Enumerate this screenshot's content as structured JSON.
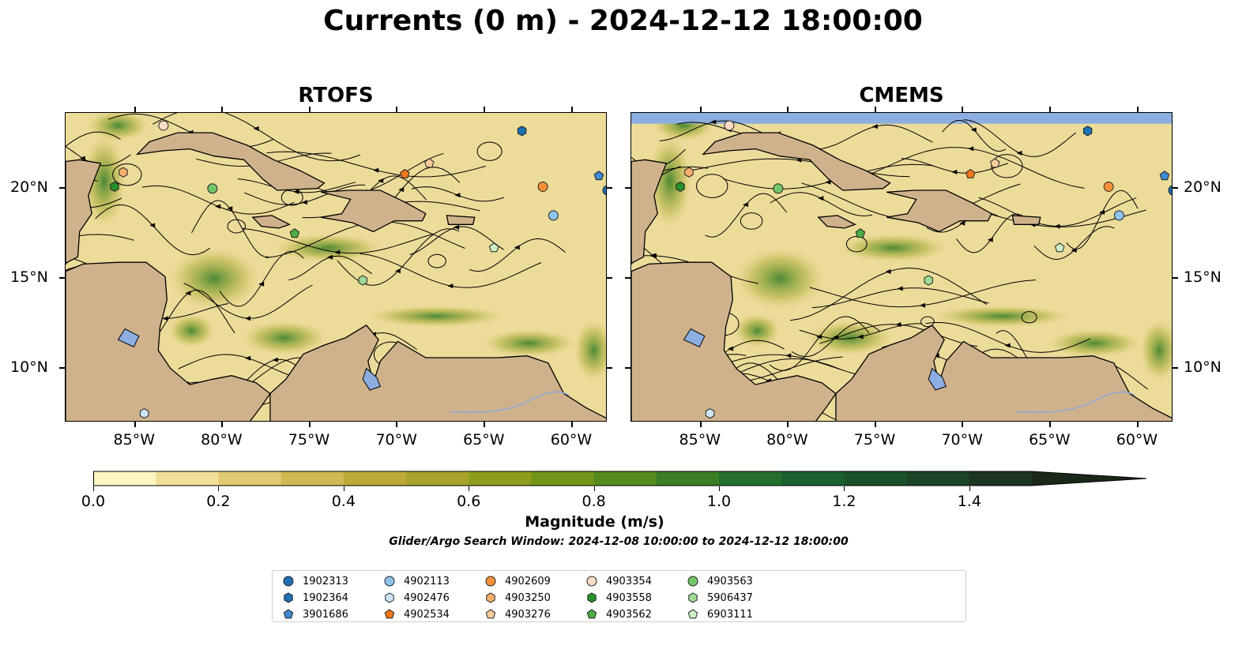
{
  "title": "Currents (0 m) - 2024-12-12 18:00:00",
  "panels": [
    {
      "id": "rtofs",
      "title": "RTOFS"
    },
    {
      "id": "cmems",
      "title": "CMEMS"
    }
  ],
  "map_extent": {
    "lon": [
      -89,
      -58
    ],
    "lat": [
      7,
      24.2
    ]
  },
  "lon_ticks": [
    "85°W",
    "80°W",
    "75°W",
    "70°W",
    "65°W",
    "60°W"
  ],
  "lat_ticks": [
    "20°N",
    "15°N",
    "10°N"
  ],
  "colors": {
    "land": "#cfb28c",
    "water_body": "#8caee0",
    "streamline": "#000000"
  },
  "colorbar": {
    "label": "Magnitude (m/s)",
    "min": 0.0,
    "max": 1.5,
    "extend": "max",
    "tick_labels": [
      "0.0",
      "0.2",
      "0.4",
      "0.6",
      "0.8",
      "1.0",
      "1.2",
      "1.4"
    ],
    "colors": [
      "#fdf5c2",
      "#efdf98",
      "#e0cb72",
      "#d0b852",
      "#bdab38",
      "#a8a32a",
      "#8e9e1a",
      "#729517",
      "#558a1e",
      "#3c7e26",
      "#246f2e",
      "#19612f",
      "#1a522c",
      "#1c4427",
      "#1c3521",
      "#1a281a"
    ],
    "subtitle": "Glider/Argo Search Window: 2024-12-08 10:00:00 to 2024-12-12 18:00:00"
  },
  "legend": [
    {
      "id": "1902313",
      "marker": "circle",
      "color": "#1f6fb4"
    },
    {
      "id": "1902364",
      "marker": "hexagon",
      "color": "#1f6fb4"
    },
    {
      "id": "3901686",
      "marker": "pentagon",
      "color": "#3f8ad0"
    },
    {
      "id": "4902113",
      "marker": "circle",
      "color": "#8ec3ec"
    },
    {
      "id": "4902476",
      "marker": "hexagon",
      "color": "#cde6f7"
    },
    {
      "id": "4902534",
      "marker": "pentagon",
      "color": "#f07818"
    },
    {
      "id": "4902609",
      "marker": "circle",
      "color": "#f59038"
    },
    {
      "id": "4903250",
      "marker": "hexagon",
      "color": "#f7ae6e"
    },
    {
      "id": "4903276",
      "marker": "pentagon",
      "color": "#fbcb9a"
    },
    {
      "id": "4903354",
      "marker": "circle",
      "color": "#fbdcc4"
    },
    {
      "id": "4903558",
      "marker": "hexagon",
      "color": "#26902c"
    },
    {
      "id": "4903562",
      "marker": "pentagon",
      "color": "#4cae44"
    },
    {
      "id": "4903563",
      "marker": "circle",
      "color": "#74c66a"
    },
    {
      "id": "5906437",
      "marker": "hexagon",
      "color": "#9ed996"
    },
    {
      "id": "6903111",
      "marker": "pentagon",
      "color": "#cdeec4"
    }
  ],
  "floats": [
    {
      "id": "4903354",
      "lon": -83.4,
      "lat": 23.5
    },
    {
      "id": "1902364",
      "lon": -62.9,
      "lat": 23.2
    },
    {
      "id": "4903276",
      "lon": -68.2,
      "lat": 21.4
    },
    {
      "id": "4902534",
      "lon": -69.6,
      "lat": 20.8
    },
    {
      "id": "4903250",
      "lon": -85.7,
      "lat": 20.9
    },
    {
      "id": "4903558",
      "lon": -86.2,
      "lat": 20.1
    },
    {
      "id": "4903563",
      "lon": -80.6,
      "lat": 20.0
    },
    {
      "id": "3901686",
      "lon": -58.5,
      "lat": 20.7
    },
    {
      "id": "1902313",
      "lon": -58.0,
      "lat": 19.9
    },
    {
      "id": "4902609",
      "lon": -61.7,
      "lat": 20.1
    },
    {
      "id": "4902113",
      "lon": -61.1,
      "lat": 18.5
    },
    {
      "id": "4903562",
      "lon": -75.9,
      "lat": 17.5
    },
    {
      "id": "6903111",
      "lon": -64.5,
      "lat": 16.7
    },
    {
      "id": "5906437",
      "lon": -72.0,
      "lat": 14.9
    },
    {
      "id": "4902476",
      "lon": -84.5,
      "lat": 7.5
    }
  ]
}
